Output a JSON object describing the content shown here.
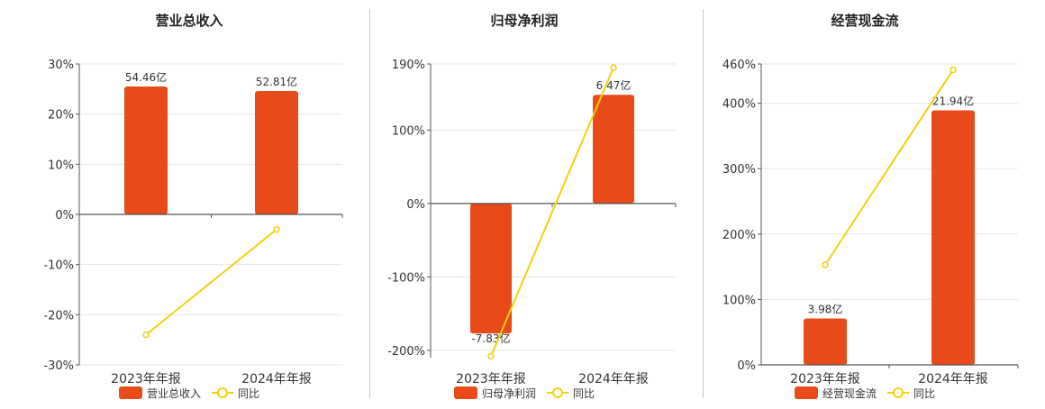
{
  "colors": {
    "bar": "#e84a1a",
    "line": "#f2d10f",
    "axis": "#555555",
    "grid": "#e6e6e6",
    "text": "#333333"
  },
  "chart_data": [
    {
      "type": "bar",
      "title": "营业总收入",
      "categories": [
        "2023年年报",
        "2024年年报"
      ],
      "bar_series": {
        "name": "营业总收入",
        "values": [
          25.5,
          24.6
        ],
        "labels": [
          "54.46亿",
          "52.81亿"
        ]
      },
      "line_series": {
        "name": "同比",
        "values": [
          -24,
          -3
        ]
      },
      "y_ticks": [
        30,
        20,
        10,
        0,
        -10,
        -20,
        -30
      ],
      "y_tick_labels": [
        "30%",
        "20%",
        "10%",
        "0%",
        "-10%",
        "-20%",
        "-30%"
      ],
      "ylim": [
        -30,
        30
      ],
      "legend": "bottom"
    },
    {
      "type": "bar",
      "title": "归母净利润",
      "categories": [
        "2023年年报",
        "2024年年报"
      ],
      "bar_series": {
        "name": "归母净利润",
        "values": [
          -177,
          148
        ],
        "labels": [
          "-7.83亿",
          "6.47亿"
        ]
      },
      "line_series": {
        "name": "同比",
        "values": [
          -208,
          185
        ]
      },
      "y_ticks": [
        190,
        100,
        0,
        -100,
        -200
      ],
      "y_tick_labels": [
        "190%",
        "100%",
        "0%",
        "-100%",
        "-200%"
      ],
      "ylim": [
        -210,
        190
      ],
      "legend": "bottom"
    },
    {
      "type": "bar",
      "title": "经营现金流",
      "categories": [
        "2023年年报",
        "2024年年报"
      ],
      "bar_series": {
        "name": "经营现金流",
        "values": [
          71,
          389
        ],
        "labels": [
          "3.98亿",
          "21.94亿"
        ]
      },
      "line_series": {
        "name": "同比",
        "values": [
          153,
          451
        ]
      },
      "y_ticks": [
        460,
        400,
        300,
        200,
        100,
        0
      ],
      "y_tick_labels": [
        "460%",
        "400%",
        "300%",
        "200%",
        "100%",
        "0%"
      ],
      "ylim": [
        0,
        460
      ],
      "legend": "bottom"
    }
  ]
}
